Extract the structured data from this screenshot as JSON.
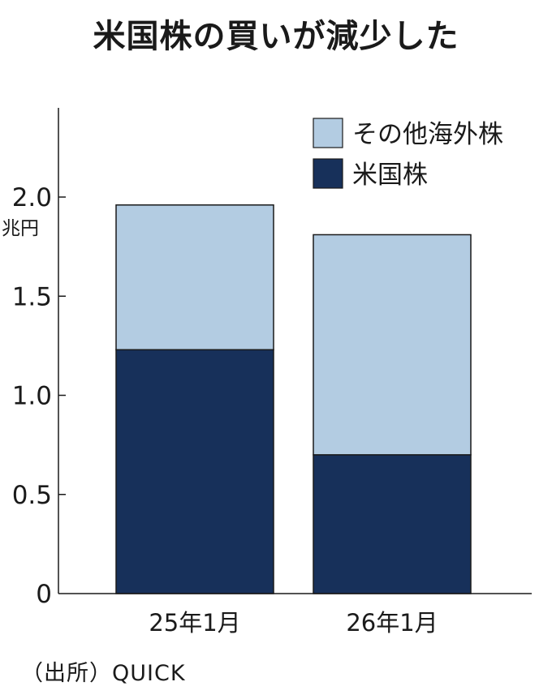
{
  "title": "米国株の買いが減少した",
  "source": "（出所）QUICK",
  "chart_data": {
    "type": "bar",
    "stacked": true,
    "title": "米国株の買いが減少した",
    "xlabel": "",
    "ylabel": "",
    "y_unit": "兆円",
    "ylim": [
      0,
      2.0
    ],
    "yticks": [
      "0",
      "0.5",
      "1.0",
      "1.5",
      "2.0"
    ],
    "categories": [
      "25年1月",
      "26年1月"
    ],
    "series": [
      {
        "name": "米国株",
        "values": [
          1.23,
          0.7
        ],
        "color": "#17305a"
      },
      {
        "name": "その他海外株",
        "values": [
          0.73,
          1.11
        ],
        "color": "#b3cce2"
      }
    ],
    "legend": {
      "placement": "top-right",
      "order": [
        "その他海外株",
        "米国株"
      ]
    },
    "grid": false
  }
}
